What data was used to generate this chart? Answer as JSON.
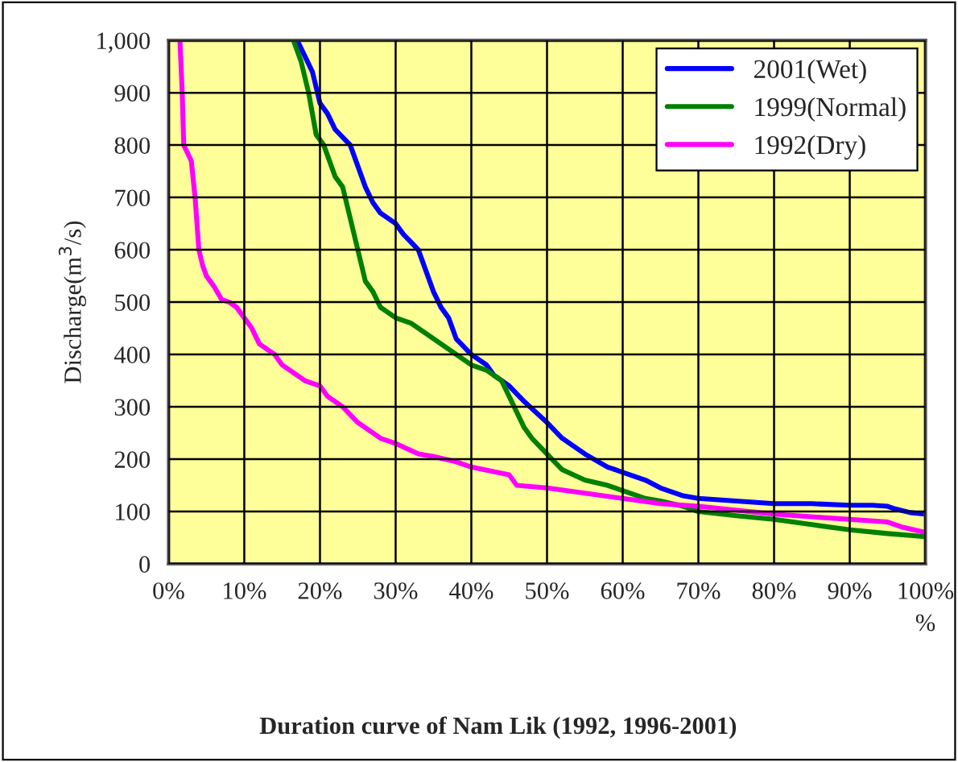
{
  "chart_data": {
    "type": "line",
    "title": "Duration curve of Nam Lik (1992, 1996-2001)",
    "xlabel": "%",
    "ylabel": "Discharge(m$^{3}$/s)",
    "xlim": [
      0,
      100
    ],
    "ylim": [
      0,
      1000
    ],
    "xticks": [
      {
        "value": 0,
        "label": "0%"
      },
      {
        "value": 10,
        "label": "10%"
      },
      {
        "value": 20,
        "label": "20%"
      },
      {
        "value": 30,
        "label": "30%"
      },
      {
        "value": 40,
        "label": "40%"
      },
      {
        "value": 50,
        "label": "50%"
      },
      {
        "value": 60,
        "label": "60%"
      },
      {
        "value": 70,
        "label": "70%"
      },
      {
        "value": 80,
        "label": "80%"
      },
      {
        "value": 90,
        "label": "90%"
      },
      {
        "value": 100,
        "label": "100%"
      }
    ],
    "yticks": [
      0,
      100,
      200,
      300,
      400,
      500,
      600,
      700,
      800,
      900,
      {
        "value": 1000,
        "label": "1,000"
      }
    ],
    "grid": true,
    "legend": "top right",
    "marker": "none",
    "line_style": "solid",
    "series": [
      {
        "name": "2001(Wet)",
        "color": "#0000ff",
        "x": [
          17,
          18,
          19,
          20,
          21,
          22,
          24,
          25,
          26,
          27,
          28,
          30,
          31,
          33,
          34,
          35,
          36,
          37,
          38,
          40,
          42,
          43,
          45,
          47,
          50,
          52,
          55,
          58,
          60,
          63,
          65,
          68,
          70,
          75,
          80,
          85,
          90,
          93,
          95,
          96,
          98,
          100
        ],
        "values": [
          1000,
          970,
          940,
          880,
          860,
          830,
          800,
          760,
          720,
          690,
          670,
          650,
          630,
          600,
          560,
          520,
          490,
          470,
          430,
          400,
          380,
          360,
          340,
          310,
          270,
          240,
          210,
          185,
          175,
          160,
          145,
          130,
          125,
          120,
          115,
          115,
          112,
          112,
          110,
          105,
          98,
          95
        ]
      },
      {
        "name": "1999(Normal)",
        "color": "#008000",
        "x": [
          16.5,
          17.5,
          18.5,
          19.5,
          20.5,
          22,
          23,
          24,
          25,
          26,
          27,
          28,
          29,
          30,
          32,
          34,
          36,
          38,
          40,
          42,
          44,
          45,
          46,
          47,
          48,
          50,
          52,
          55,
          58,
          60,
          63,
          65,
          68,
          70,
          75,
          80,
          85,
          90,
          95,
          100
        ],
        "values": [
          1000,
          960,
          900,
          820,
          800,
          740,
          720,
          660,
          600,
          540,
          520,
          490,
          480,
          470,
          460,
          440,
          420,
          400,
          380,
          370,
          350,
          320,
          290,
          260,
          240,
          210,
          180,
          160,
          150,
          140,
          125,
          120,
          110,
          100,
          92,
          85,
          75,
          65,
          58,
          52
        ]
      },
      {
        "name": "1992(Dry)",
        "color": "#ff00ff",
        "x": [
          1.5,
          1.8,
          2,
          3,
          3.5,
          4,
          4.5,
          5,
          6,
          7,
          8,
          9,
          10,
          11,
          12,
          14,
          15,
          17,
          18,
          20,
          21,
          23,
          25,
          27,
          28,
          30,
          33,
          35,
          38,
          40,
          45,
          46,
          50,
          55,
          60,
          65,
          70,
          80,
          90,
          95,
          97,
          100
        ],
        "values": [
          1000,
          900,
          800,
          770,
          700,
          600,
          570,
          550,
          530,
          505,
          500,
          490,
          470,
          450,
          420,
          400,
          380,
          360,
          350,
          340,
          320,
          300,
          270,
          250,
          240,
          230,
          210,
          205,
          195,
          185,
          170,
          150,
          145,
          135,
          125,
          115,
          110,
          95,
          85,
          80,
          70,
          60
        ]
      }
    ]
  }
}
